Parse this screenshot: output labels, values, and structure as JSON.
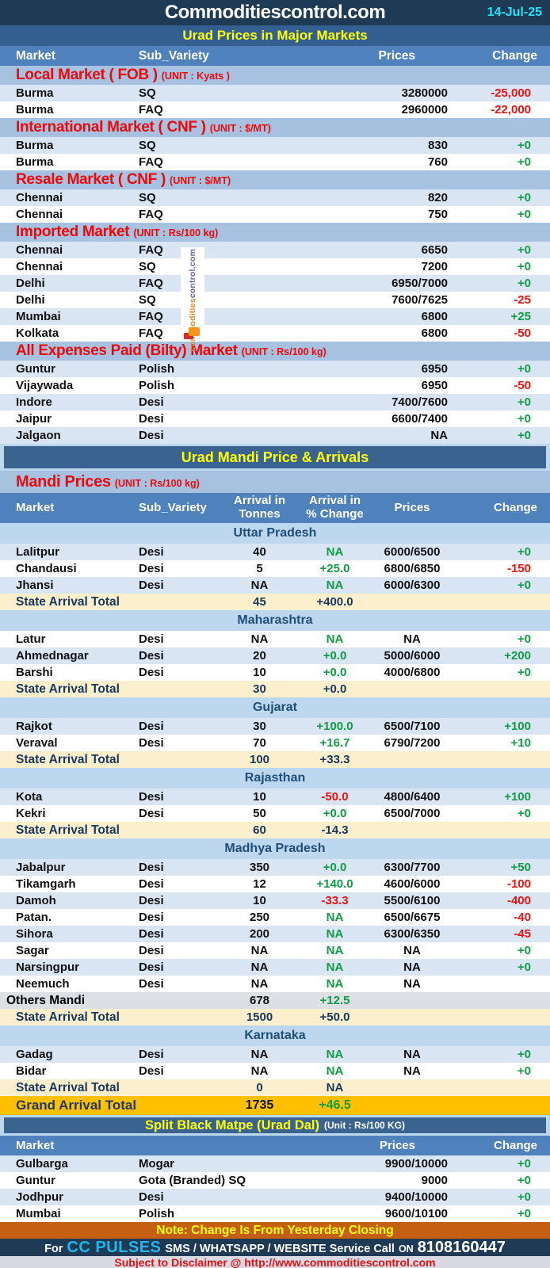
{
  "header": {
    "title": "Commoditiescontrol.com",
    "date": "14-Jul-25"
  },
  "major": {
    "title": "Urad Prices in Major Markets",
    "columns": [
      "Market",
      "Sub_Variety",
      "Prices",
      "Change"
    ],
    "sections": [
      {
        "name": "Local Market ( FOB )",
        "unit": "(UNIT : Kyats )",
        "rows": [
          {
            "market": "Burma",
            "sub": "SQ",
            "price": "3280000",
            "change": "-25,000"
          },
          {
            "market": "Burma",
            "sub": "FAQ",
            "price": "2960000",
            "change": "-22,000"
          }
        ]
      },
      {
        "name": "International Market ( CNF )",
        "unit": "(UNIT : $/MT)",
        "rows": [
          {
            "market": "Burma",
            "sub": "SQ",
            "price": "830",
            "change": "+0"
          },
          {
            "market": "Burma",
            "sub": "FAQ",
            "price": "760",
            "change": "+0"
          }
        ]
      },
      {
        "name": "Resale Market  ( CNF )",
        "unit": "(UNIT : $/MT)",
        "rows": [
          {
            "market": "Chennai",
            "sub": "SQ",
            "price": "820",
            "change": "+0"
          },
          {
            "market": "Chennai",
            "sub": "FAQ",
            "price": "750",
            "change": "+0"
          }
        ]
      },
      {
        "name": "Imported Market",
        "unit": "(UNIT : Rs/100 kg)",
        "rows": [
          {
            "market": "Chennai",
            "sub": "FAQ",
            "price": "6650",
            "change": "+0"
          },
          {
            "market": "Chennai",
            "sub": "SQ",
            "price": "7200",
            "change": "+0"
          },
          {
            "market": "Delhi",
            "sub": "FAQ",
            "price": "6950/7000",
            "change": "+0"
          },
          {
            "market": "Delhi",
            "sub": "SQ",
            "price": "7600/7625",
            "change": "-25"
          },
          {
            "market": "Mumbai",
            "sub": "FAQ",
            "price": "6800",
            "change": "+25"
          },
          {
            "market": "Kolkata",
            "sub": "FAQ",
            "price": "6800",
            "change": "-50"
          }
        ]
      },
      {
        "name": "All Expenses Paid (Bilty) Market",
        "unit": "(UNIT : Rs/100 kg)",
        "rows": [
          {
            "market": "Guntur",
            "sub": "Polish",
            "price": "6950",
            "change": "+0"
          },
          {
            "market": "Vijaywada",
            "sub": "Polish",
            "price": "6950",
            "change": "-50"
          },
          {
            "market": "Indore",
            "sub": "Desi",
            "price": "7400/7600",
            "change": "+0"
          },
          {
            "market": "Jaipur",
            "sub": "Desi",
            "price": "6600/7400",
            "change": "+0"
          },
          {
            "market": "Jalgaon",
            "sub": "Desi",
            "price": "NA",
            "change": "+0"
          }
        ]
      }
    ]
  },
  "mandi": {
    "title": "Urad Mandi Price & Arrivals",
    "subtitle": "Mandi Prices",
    "unit": "(UNIT : Rs/100 kg)",
    "columns": [
      "Market",
      "Sub_Variety",
      "Arrival in\nTonnes",
      "Arrival  in\n% Change",
      "Prices",
      "Change"
    ],
    "states": [
      {
        "name": "Uttar Pradesh",
        "rows": [
          {
            "market": "Lalitpur",
            "sub": "Desi",
            "arrival": "40",
            "pct": "NA",
            "price": "6000/6500",
            "change": "+0"
          },
          {
            "market": "Chandausi",
            "sub": "Desi",
            "arrival": "5",
            "pct": "+25.0",
            "price": "6800/6850",
            "change": "-150"
          },
          {
            "market": "Jhansi",
            "sub": "Desi",
            "arrival": "NA",
            "pct": "NA",
            "price": "6000/6300",
            "change": "+0"
          }
        ],
        "total": {
          "label": "State Arrival Total",
          "arrival": "45",
          "pct": "+400.0"
        }
      },
      {
        "name": "Maharashtra",
        "rows": [
          {
            "market": "Latur",
            "sub": "Desi",
            "arrival": "NA",
            "pct": "NA",
            "price": "NA",
            "change": "+0"
          },
          {
            "market": "Ahmednagar",
            "sub": "Desi",
            "arrival": "20",
            "pct": "+0.0",
            "price": "5000/6000",
            "change": "+200"
          },
          {
            "market": "Barshi",
            "sub": "Desi",
            "arrival": "10",
            "pct": "+0.0",
            "price": "4000/6800",
            "change": "+0"
          }
        ],
        "total": {
          "label": "State Arrival Total",
          "arrival": "30",
          "pct": "+0.0"
        }
      },
      {
        "name": "Gujarat",
        "rows": [
          {
            "market": "Rajkot",
            "sub": "Desi",
            "arrival": "30",
            "pct": "+100.0",
            "price": "6500/7100",
            "change": "+100"
          },
          {
            "market": "Veraval",
            "sub": "Desi",
            "arrival": "70",
            "pct": "+16.7",
            "price": "6790/7200",
            "change": "+10"
          }
        ],
        "total": {
          "label": "State Arrival Total",
          "arrival": "100",
          "pct": "+33.3"
        }
      },
      {
        "name": "Rajasthan",
        "rows": [
          {
            "market": "Kota",
            "sub": "Desi",
            "arrival": "10",
            "pct": "-50.0",
            "price": "4800/6400",
            "change": "+100"
          },
          {
            "market": "Kekri",
            "sub": "Desi",
            "arrival": "50",
            "pct": "+0.0",
            "price": "6500/7000",
            "change": "+0"
          }
        ],
        "total": {
          "label": "State Arrival Total",
          "arrival": "60",
          "pct": "-14.3"
        }
      },
      {
        "name": "Madhya Pradesh",
        "rows": [
          {
            "market": "Jabalpur",
            "sub": "Desi",
            "arrival": "350",
            "pct": "+0.0",
            "price": "6300/7700",
            "change": "+50"
          },
          {
            "market": "Tikamgarh",
            "sub": "Desi",
            "arrival": "12",
            "pct": "+140.0",
            "price": "4600/6000",
            "change": "-100"
          },
          {
            "market": "Damoh",
            "sub": "Desi",
            "arrival": "10",
            "pct": "-33.3",
            "price": "5500/6100",
            "change": "-400"
          },
          {
            "market": "Patan.",
            "sub": "Desi",
            "arrival": "250",
            "pct": "NA",
            "price": "6500/6675",
            "change": "-40"
          },
          {
            "market": "Sihora",
            "sub": "Desi",
            "arrival": "200",
            "pct": "NA",
            "price": "6300/6350",
            "change": "-45"
          },
          {
            "market": "Sagar",
            "sub": "Desi",
            "arrival": "NA",
            "pct": "NA",
            "price": "NA",
            "change": "+0"
          },
          {
            "market": "Narsingpur",
            "sub": "Desi",
            "arrival": "NA",
            "pct": "NA",
            "price": "NA",
            "change": "+0"
          },
          {
            "market": "Neemuch",
            "sub": "Desi",
            "arrival": "NA",
            "pct": "NA",
            "price": "NA",
            "change": ""
          }
        ],
        "others": {
          "label": "Others Mandi",
          "arrival": "678",
          "pct": "+12.5"
        },
        "total": {
          "label": "State Arrival Total",
          "arrival": "1500",
          "pct": "+50.0"
        }
      },
      {
        "name": "Karnataka",
        "rows": [
          {
            "market": "Gadag",
            "sub": "Desi",
            "arrival": "NA",
            "pct": "NA",
            "price": "NA",
            "change": "+0"
          },
          {
            "market": "Bidar",
            "sub": "Desi",
            "arrival": "NA",
            "pct": "NA",
            "price": "NA",
            "change": "+0"
          }
        ],
        "total": {
          "label": "State Arrival Total",
          "arrival": "0",
          "pct": "NA"
        }
      }
    ],
    "grand_total": {
      "label": "Grand Arrival Total",
      "arrival": "1735",
      "pct": "+46.5"
    }
  },
  "matpe": {
    "title": "Split Black Matpe (Urad Dal)",
    "unit": "(Unit : Rs/100 KG)",
    "columns": [
      "Market",
      "Prices",
      "Change"
    ],
    "rows": [
      {
        "market": "Gulbarga",
        "sub": "Mogar",
        "price": "9900/10000",
        "change": "+0"
      },
      {
        "market": "Guntur",
        "sub": "Gota (Branded) SQ",
        "price": "9000",
        "change": "+0"
      },
      {
        "market": "Jodhpur",
        "sub": "Desi",
        "price": "9400/10000",
        "change": "+0"
      },
      {
        "market": "Mumbai",
        "sub": "Polish",
        "price": "9600/10100",
        "change": "+0"
      }
    ]
  },
  "footer": {
    "note": "Note: Change Is From Yesterday Closing",
    "for_label": "For",
    "brand": "CC PULSES",
    "service": "SMS / WHATSAPP / WEBSITE Service Call",
    "on_label": "ON",
    "phone": "8108160447",
    "disclaimer": "Subject to Disclaimer @  http://www.commoditiescontrol.com"
  },
  "watermark": {
    "part1": "commodities",
    "part2": "control.com"
  },
  "colors": {
    "positive": "#0e9d45",
    "negative": "#f50f0f",
    "accent_navy": "#1e3a54",
    "header_blue": "#4f81bd",
    "band_blue": "#3a648f",
    "gold": "#ffc000",
    "note_orange": "#c55f11",
    "cyan": "#1bb9ee",
    "yellow": "#ffff00"
  }
}
